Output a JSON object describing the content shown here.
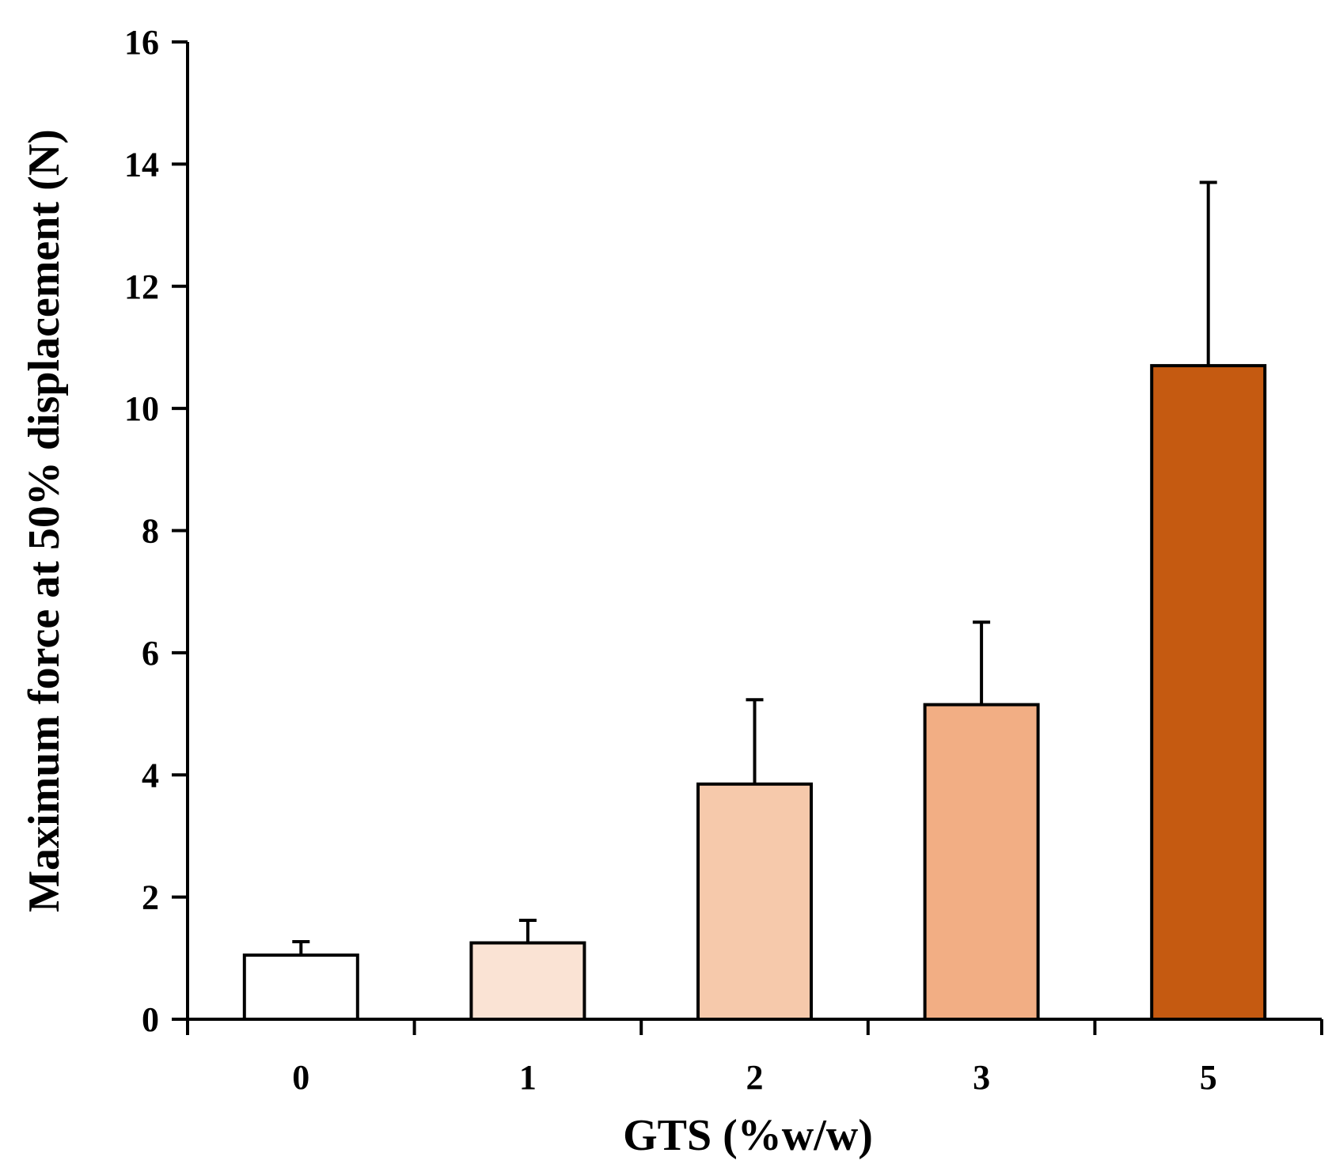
{
  "chart_data": {
    "type": "bar",
    "title": "",
    "xlabel": "GTS (%w/w)",
    "ylabel": "Maximum force at 50% displacement (N)",
    "categories": [
      "0",
      "1",
      "2",
      "3",
      "5"
    ],
    "values": [
      1.05,
      1.25,
      3.85,
      5.15,
      10.7
    ],
    "errors": [
      0.22,
      0.37,
      1.38,
      1.35,
      3.0
    ],
    "colors": [
      "#ffffff",
      "#fae3d4",
      "#f6c9ab",
      "#f2ae84",
      "#c55a11"
    ],
    "ylim": [
      0,
      16
    ],
    "yticks": [
      "0",
      "2",
      "4",
      "6",
      "8",
      "10",
      "12",
      "14",
      "16"
    ],
    "grid": false,
    "legend": "none"
  }
}
